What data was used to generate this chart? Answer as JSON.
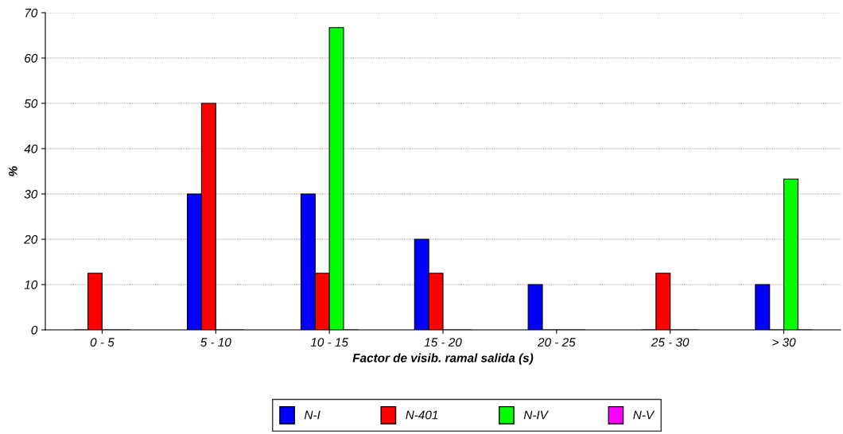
{
  "chart_data": {
    "type": "bar",
    "xlabel": "Factor de visib. ramal salida (s)",
    "ylabel": "%",
    "categories": [
      "0 - 5",
      "5 - 10",
      "10 - 15",
      "15 - 20",
      "20 - 25",
      "25 - 30",
      "> 30"
    ],
    "series": [
      {
        "name": "N-I",
        "color": "#0000ff",
        "values": [
          0,
          30,
          30,
          20,
          10,
          0,
          10
        ]
      },
      {
        "name": "N-401",
        "color": "#ff0000",
        "values": [
          12.5,
          50,
          12.5,
          12.5,
          0,
          12.5,
          0
        ]
      },
      {
        "name": "N-IV",
        "color": "#00ff00",
        "values": [
          0,
          0,
          66.7,
          0,
          0,
          0,
          33.3
        ]
      },
      {
        "name": "N-V",
        "color": "#ff00ff",
        "values": [
          0,
          0,
          0,
          0,
          0,
          0,
          0
        ]
      }
    ],
    "ylim": [
      0,
      70
    ],
    "yticks": [
      0,
      10,
      20,
      30,
      40,
      50,
      60,
      70
    ],
    "grid": "y",
    "legend": "bottom"
  }
}
